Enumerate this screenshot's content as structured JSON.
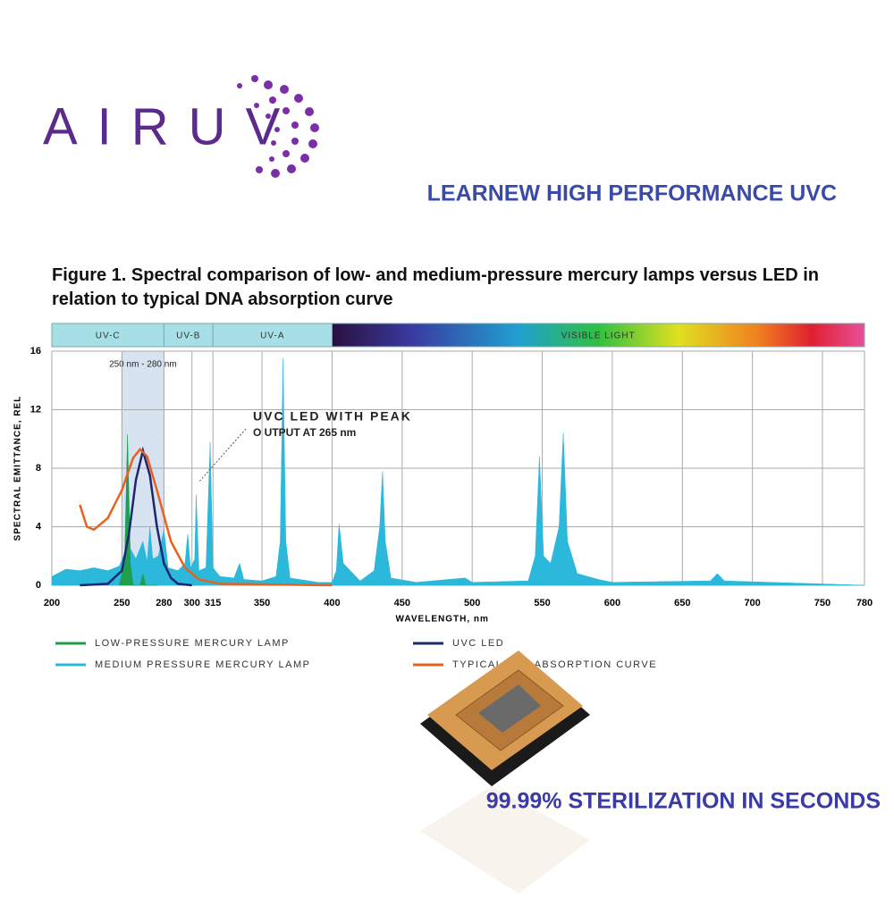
{
  "brand": "AIRUV",
  "headline": "LEARNEW HIGH PERFORMANCE UVC",
  "tagline": "99.99% STERILIZATION IN SECONDS",
  "chart_data": {
    "type": "line",
    "title": "Figure 1. Spectral comparison of low- and medium-pressure mercury lamps versus LED in relation to typical DNA absorption curve",
    "x_label": "WAVELENGTH, nm",
    "y_label": "SPECTRAL EMITTANCE, REL",
    "xlim": [
      200,
      780
    ],
    "xticks": [
      200,
      250,
      280,
      300,
      315,
      350,
      400,
      450,
      500,
      550,
      600,
      650,
      700,
      750,
      780
    ],
    "ylim": [
      0,
      16
    ],
    "yticks": [
      0,
      4,
      8,
      12,
      16
    ],
    "grid": true,
    "bands": [
      {
        "label": "UV-C",
        "start": 200,
        "end": 280
      },
      {
        "label": "UV-B",
        "start": 280,
        "end": 315
      },
      {
        "label": "UV-A",
        "start": 315,
        "end": 400
      },
      {
        "label": "VISIBLE LIGHT",
        "start": 400,
        "end": 780
      }
    ],
    "highlight": {
      "label": "250 nm - 280 nm",
      "start": 250,
      "end": 280
    },
    "annotation": [
      "UVC LED WITH PEAK",
      "O UTPUT AT 265 nm"
    ],
    "series": [
      {
        "name": "MEDIUM PRESSURE MERCURY LAMP",
        "color": "#2bb8da",
        "area": true,
        "x": [
          200,
          210,
          220,
          230,
          240,
          248,
          252,
          254,
          256,
          260,
          265,
          268,
          270,
          272,
          276,
          280,
          283,
          290,
          295,
          297,
          299,
          302,
          303,
          305,
          310,
          313,
          315,
          320,
          330,
          334,
          337,
          350,
          360,
          363,
          365,
          367,
          370,
          390,
          400,
          403,
          405,
          408,
          420,
          430,
          434,
          436,
          438,
          442,
          460,
          495,
          500,
          540,
          545,
          548,
          551,
          556,
          562,
          565,
          568,
          575,
          590,
          600,
          670,
          675,
          680,
          780
        ],
        "values": [
          0.6,
          1.1,
          1.0,
          1.2,
          1.0,
          1.3,
          2.2,
          10.0,
          2.5,
          1.8,
          3.0,
          1.6,
          4.0,
          1.8,
          2.0,
          3.8,
          1.2,
          1.0,
          1.5,
          3.5,
          1.2,
          1.8,
          6.2,
          1.0,
          1.2,
          9.8,
          1.2,
          0.6,
          0.5,
          1.5,
          0.4,
          0.3,
          0.6,
          3.0,
          15.5,
          3.0,
          0.5,
          0.2,
          0.2,
          1.0,
          4.2,
          1.5,
          0.3,
          1.0,
          4.0,
          7.8,
          3.0,
          0.5,
          0.2,
          0.5,
          0.2,
          0.3,
          2.0,
          8.8,
          2.0,
          1.5,
          4.0,
          10.4,
          3.0,
          0.8,
          0.4,
          0.2,
          0.3,
          0.8,
          0.3,
          0
        ]
      },
      {
        "name": "LOW-PRESSURE MERCURY LAMP",
        "color": "#1f9e4c",
        "area": true,
        "x": [
          248,
          252,
          254,
          256,
          258,
          263,
          265,
          267,
          275
        ],
        "values": [
          0,
          1.5,
          10.3,
          1.5,
          0,
          0,
          0.8,
          0,
          0
        ]
      },
      {
        "name": "UVC LED",
        "color": "#1c2770",
        "area": false,
        "x": [
          220,
          240,
          250,
          255,
          260,
          265,
          270,
          275,
          280,
          285,
          290,
          300
        ],
        "values": [
          0,
          0.1,
          1.0,
          3.5,
          7.2,
          9.2,
          7.5,
          4.0,
          1.5,
          0.5,
          0.1,
          0
        ]
      },
      {
        "name": "TYPICAL DNA ABSORPTION CURVE",
        "color": "#e8621e",
        "area": false,
        "x": [
          220,
          225,
          230,
          240,
          250,
          258,
          263,
          268,
          275,
          285,
          295,
          305,
          320,
          400
        ],
        "values": [
          5.5,
          4.0,
          3.8,
          4.6,
          6.5,
          8.7,
          9.3,
          8.8,
          6.5,
          3.0,
          1.2,
          0.4,
          0.1,
          0
        ]
      }
    ]
  }
}
